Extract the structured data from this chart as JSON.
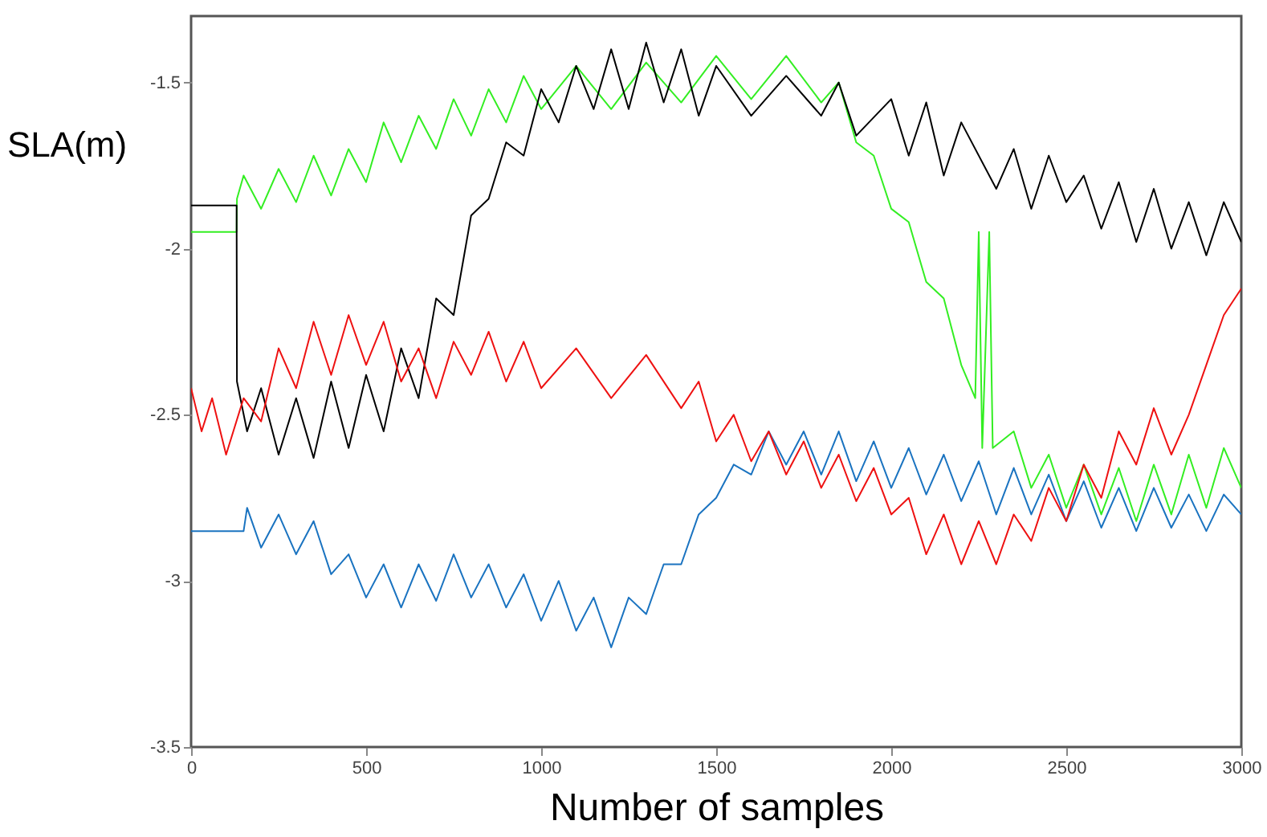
{
  "chart_data": {
    "type": "line",
    "xlabel": "Number of samples",
    "ylabel": "SLA(m)",
    "xlim": [
      0,
      3000
    ],
    "xticks": [
      0,
      500,
      1000,
      1500,
      2000,
      2500,
      3000
    ],
    "ylim": [
      -3.5,
      -1.3
    ],
    "yticks": [
      -3.5,
      -3,
      -2.5,
      -2,
      -1.5
    ],
    "grid": false,
    "series": [
      {
        "color": "#33ee22",
        "x": [
          0,
          130,
          131,
          150,
          200,
          250,
          300,
          350,
          400,
          450,
          500,
          550,
          600,
          650,
          700,
          750,
          800,
          850,
          900,
          950,
          1000,
          1100,
          1200,
          1300,
          1400,
          1500,
          1600,
          1700,
          1800,
          1850,
          1900,
          1950,
          2000,
          2050,
          2100,
          2150,
          2200,
          2240,
          2250,
          2260,
          2280,
          2290,
          2350,
          2400,
          2450,
          2500,
          2550,
          2600,
          2650,
          2700,
          2750,
          2800,
          2850,
          2900,
          2950,
          3000
        ],
        "values": [
          -1.95,
          -1.95,
          -1.85,
          -1.78,
          -1.88,
          -1.76,
          -1.86,
          -1.72,
          -1.84,
          -1.7,
          -1.8,
          -1.62,
          -1.74,
          -1.6,
          -1.7,
          -1.55,
          -1.66,
          -1.52,
          -1.62,
          -1.48,
          -1.58,
          -1.45,
          -1.58,
          -1.44,
          -1.56,
          -1.42,
          -1.55,
          -1.42,
          -1.56,
          -1.5,
          -1.68,
          -1.72,
          -1.88,
          -1.92,
          -2.1,
          -2.15,
          -2.35,
          -2.45,
          -1.95,
          -2.6,
          -1.95,
          -2.6,
          -2.55,
          -2.72,
          -2.62,
          -2.78,
          -2.65,
          -2.8,
          -2.66,
          -2.82,
          -2.65,
          -2.8,
          -2.62,
          -2.78,
          -2.6,
          -2.72
        ]
      },
      {
        "color": "#000000",
        "x": [
          0,
          130,
          131,
          160,
          200,
          250,
          300,
          350,
          400,
          450,
          500,
          550,
          600,
          650,
          700,
          750,
          800,
          850,
          900,
          950,
          1000,
          1050,
          1100,
          1150,
          1200,
          1250,
          1300,
          1350,
          1400,
          1450,
          1500,
          1600,
          1700,
          1800,
          1850,
          1900,
          2000,
          2050,
          2100,
          2150,
          2200,
          2300,
          2350,
          2400,
          2450,
          2500,
          2550,
          2600,
          2650,
          2700,
          2750,
          2800,
          2850,
          2900,
          2950,
          3000
        ],
        "values": [
          -1.87,
          -1.87,
          -2.4,
          -2.55,
          -2.42,
          -2.62,
          -2.45,
          -2.63,
          -2.4,
          -2.6,
          -2.38,
          -2.55,
          -2.3,
          -2.45,
          -2.15,
          -2.2,
          -1.9,
          -1.85,
          -1.68,
          -1.72,
          -1.52,
          -1.62,
          -1.45,
          -1.58,
          -1.4,
          -1.58,
          -1.38,
          -1.56,
          -1.4,
          -1.6,
          -1.45,
          -1.6,
          -1.48,
          -1.6,
          -1.5,
          -1.66,
          -1.55,
          -1.72,
          -1.56,
          -1.78,
          -1.62,
          -1.82,
          -1.7,
          -1.88,
          -1.72,
          -1.86,
          -1.78,
          -1.94,
          -1.8,
          -1.98,
          -1.82,
          -2.0,
          -1.86,
          -2.02,
          -1.86,
          -1.98
        ]
      },
      {
        "color": "#1a73c0",
        "x": [
          0,
          150,
          160,
          200,
          250,
          300,
          350,
          400,
          450,
          500,
          550,
          600,
          650,
          700,
          750,
          800,
          850,
          900,
          950,
          1000,
          1050,
          1100,
          1150,
          1200,
          1250,
          1300,
          1350,
          1400,
          1450,
          1500,
          1550,
          1600,
          1650,
          1700,
          1750,
          1800,
          1850,
          1900,
          1950,
          2000,
          2050,
          2100,
          2150,
          2200,
          2250,
          2300,
          2350,
          2400,
          2450,
          2500,
          2550,
          2600,
          2650,
          2700,
          2750,
          2800,
          2850,
          2900,
          2950,
          3000
        ],
        "values": [
          -2.85,
          -2.85,
          -2.78,
          -2.9,
          -2.8,
          -2.92,
          -2.82,
          -2.98,
          -2.92,
          -3.05,
          -2.95,
          -3.08,
          -2.95,
          -3.06,
          -2.92,
          -3.05,
          -2.95,
          -3.08,
          -2.98,
          -3.12,
          -3.0,
          -3.15,
          -3.05,
          -3.2,
          -3.05,
          -3.1,
          -2.95,
          -2.95,
          -2.8,
          -2.75,
          -2.65,
          -2.68,
          -2.55,
          -2.65,
          -2.55,
          -2.68,
          -2.55,
          -2.7,
          -2.58,
          -2.72,
          -2.6,
          -2.74,
          -2.62,
          -2.76,
          -2.64,
          -2.8,
          -2.66,
          -2.8,
          -2.68,
          -2.82,
          -2.7,
          -2.84,
          -2.72,
          -2.85,
          -2.72,
          -2.84,
          -2.74,
          -2.85,
          -2.74,
          -2.8
        ]
      },
      {
        "color": "#ee1111",
        "x": [
          0,
          30,
          60,
          100,
          150,
          200,
          250,
          300,
          350,
          400,
          450,
          500,
          550,
          600,
          650,
          700,
          750,
          800,
          850,
          900,
          950,
          1000,
          1100,
          1200,
          1300,
          1400,
          1450,
          1500,
          1550,
          1600,
          1650,
          1700,
          1750,
          1800,
          1850,
          1900,
          1950,
          2000,
          2050,
          2100,
          2150,
          2200,
          2250,
          2300,
          2350,
          2400,
          2450,
          2500,
          2550,
          2600,
          2650,
          2700,
          2750,
          2800,
          2850,
          2900,
          2950,
          3000
        ],
        "values": [
          -2.42,
          -2.55,
          -2.45,
          -2.62,
          -2.45,
          -2.52,
          -2.3,
          -2.42,
          -2.22,
          -2.38,
          -2.2,
          -2.35,
          -2.22,
          -2.4,
          -2.3,
          -2.45,
          -2.28,
          -2.38,
          -2.25,
          -2.4,
          -2.28,
          -2.42,
          -2.3,
          -2.45,
          -2.32,
          -2.48,
          -2.4,
          -2.58,
          -2.5,
          -2.64,
          -2.55,
          -2.68,
          -2.58,
          -2.72,
          -2.62,
          -2.76,
          -2.66,
          -2.8,
          -2.75,
          -2.92,
          -2.8,
          -2.95,
          -2.82,
          -2.95,
          -2.8,
          -2.88,
          -2.72,
          -2.82,
          -2.65,
          -2.75,
          -2.55,
          -2.65,
          -2.48,
          -2.62,
          -2.5,
          -2.35,
          -2.2,
          -2.12
        ]
      }
    ]
  }
}
